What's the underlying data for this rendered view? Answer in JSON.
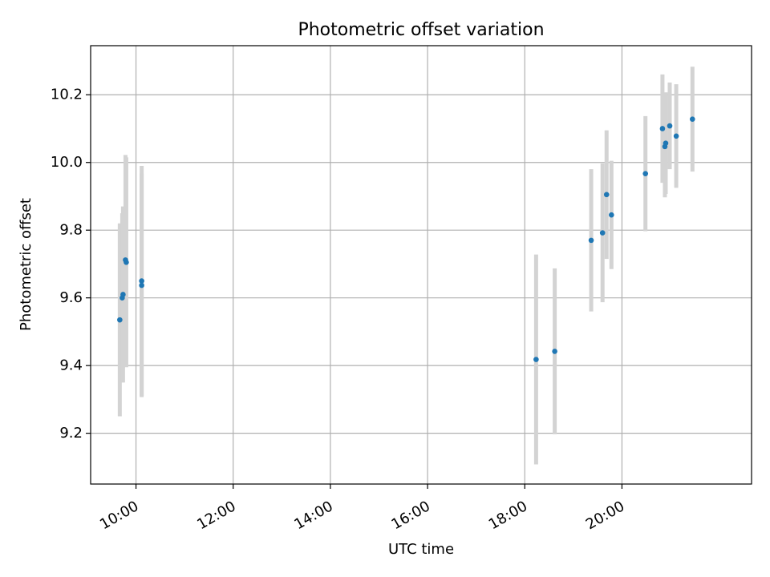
{
  "chart_data": {
    "type": "scatter",
    "title": "Photometric offset variation",
    "xlabel": "UTC time",
    "ylabel": "Photometric offset",
    "x_unit": "UTC hh:mm",
    "xlim": [
      "09:04",
      "22:40"
    ],
    "ylim": [
      9.05,
      10.345
    ],
    "x_ticks": [
      "10:00",
      "12:00",
      "14:00",
      "16:00",
      "18:00",
      "20:00"
    ],
    "y_ticks": [
      "9.2",
      "9.4",
      "9.6",
      "9.8",
      "10.0",
      "10.2"
    ],
    "grid": true,
    "legend": "none",
    "colors": {
      "points": "#1f77b4",
      "error_bars": "#d3d3d3",
      "grid": "#b0b0b0"
    },
    "series": [
      {
        "points": [
          {
            "x": "09:40",
            "y": 9.535,
            "yerr": 0.285
          },
          {
            "x": "09:43",
            "y": 9.6,
            "yerr": 0.25
          },
          {
            "x": "09:44",
            "y": 9.61,
            "yerr": 0.26
          },
          {
            "x": "09:47",
            "y": 9.712,
            "yerr": 0.31
          },
          {
            "x": "09:48",
            "y": 9.705,
            "yerr": 0.31
          },
          {
            "x": "10:07",
            "y": 9.65,
            "yerr": 0.34
          },
          {
            "x": "10:07",
            "y": 9.637,
            "yerr": 0.33
          },
          {
            "x": "18:14",
            "y": 9.418,
            "yerr": 0.31
          },
          {
            "x": "18:37",
            "y": 9.442,
            "yerr": 0.245
          },
          {
            "x": "19:22",
            "y": 9.77,
            "yerr": 0.21
          },
          {
            "x": "19:36",
            "y": 9.792,
            "yerr": 0.205
          },
          {
            "x": "19:41",
            "y": 9.905,
            "yerr": 0.19
          },
          {
            "x": "19:47",
            "y": 9.845,
            "yerr": 0.16
          },
          {
            "x": "20:29",
            "y": 9.967,
            "yerr": 0.17
          },
          {
            "x": "20:50",
            "y": 10.1,
            "yerr": 0.16
          },
          {
            "x": "20:53",
            "y": 10.047,
            "yerr": 0.15
          },
          {
            "x": "20:54",
            "y": 10.057,
            "yerr": 0.15
          },
          {
            "x": "20:59",
            "y": 10.108,
            "yerr": 0.128
          },
          {
            "x": "21:07",
            "y": 10.078,
            "yerr": 0.153
          },
          {
            "x": "21:27",
            "y": 10.128,
            "yerr": 0.155
          }
        ]
      }
    ]
  }
}
